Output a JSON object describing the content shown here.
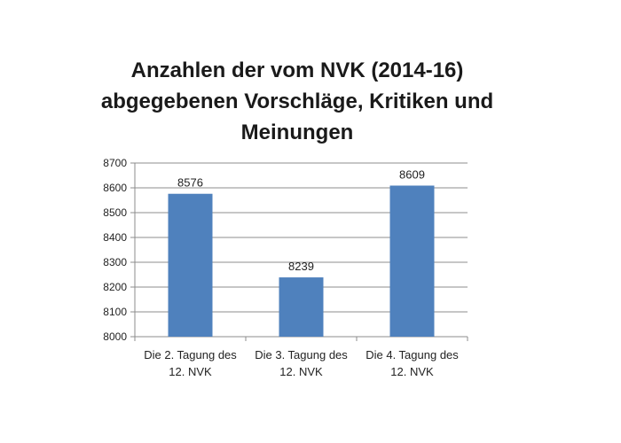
{
  "chart_data": {
    "type": "bar",
    "title_lines": [
      "Anzahlen der vom NVK (2014-16)",
      "abgegebenen Vorschläge, Kritiken und",
      "Meinungen"
    ],
    "categories": [
      [
        "Die 2. Tagung des",
        "12. NVK"
      ],
      [
        "Die 3. Tagung des",
        "12. NVK"
      ],
      [
        "Die 4. Tagung des",
        "12. NVK"
      ]
    ],
    "values": [
      8576,
      8239,
      8609
    ],
    "data_labels": [
      "8576",
      "8239",
      "8609"
    ],
    "ylim": [
      8000,
      8700
    ],
    "yticks": [
      8000,
      8100,
      8200,
      8300,
      8400,
      8500,
      8600,
      8700
    ],
    "xlabel": "",
    "ylabel": "",
    "grid": true,
    "bar_color": "#4f81bd",
    "grid_color": "#8c8c8c"
  }
}
